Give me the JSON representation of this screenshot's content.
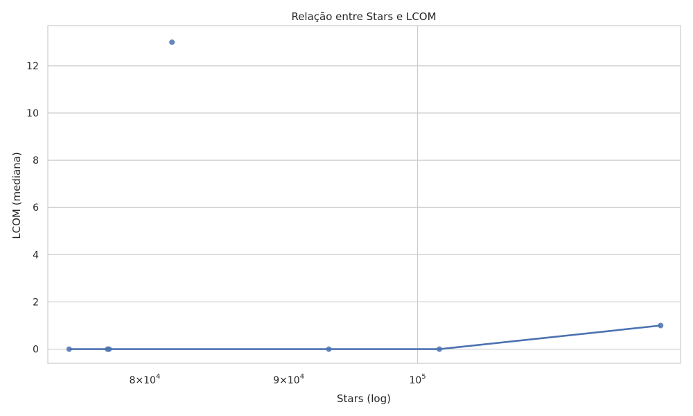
{
  "chart_data": {
    "type": "scatter",
    "title": "Relação entre Stars e LCOM",
    "xlabel": "Stars (log)",
    "ylabel": "LCOM (mediana)",
    "xscale": "log",
    "xlim": [
      73900,
      124000
    ],
    "ylim": [
      -0.6,
      13.7
    ],
    "grid": true,
    "x_ticks": [
      {
        "value": 80000,
        "mantissa": "8",
        "base": "10",
        "exp": "4"
      },
      {
        "value": 90000,
        "mantissa": "9",
        "base": "10",
        "exp": "4"
      },
      {
        "value": 100000,
        "mantissa": "",
        "base": "10",
        "exp": "5"
      }
    ],
    "y_ticks": [
      0,
      2,
      4,
      6,
      8,
      10,
      12
    ],
    "scatter_points": [
      {
        "x": 75200,
        "y": 0
      },
      {
        "x": 77600,
        "y": 0
      },
      {
        "x": 77700,
        "y": 0
      },
      {
        "x": 81800,
        "y": 13
      },
      {
        "x": 93000,
        "y": 0
      },
      {
        "x": 101800,
        "y": 0
      },
      {
        "x": 122000,
        "y": 1
      }
    ],
    "line_points": [
      {
        "x": 75200,
        "y": 0
      },
      {
        "x": 77600,
        "y": 0
      },
      {
        "x": 93000,
        "y": 0
      },
      {
        "x": 101800,
        "y": 0
      },
      {
        "x": 122000,
        "y": 1
      }
    ],
    "colors": {
      "series": "#4c72b0",
      "grid": "#cccccc",
      "frame": "#cccccc",
      "text": "#262626"
    }
  }
}
